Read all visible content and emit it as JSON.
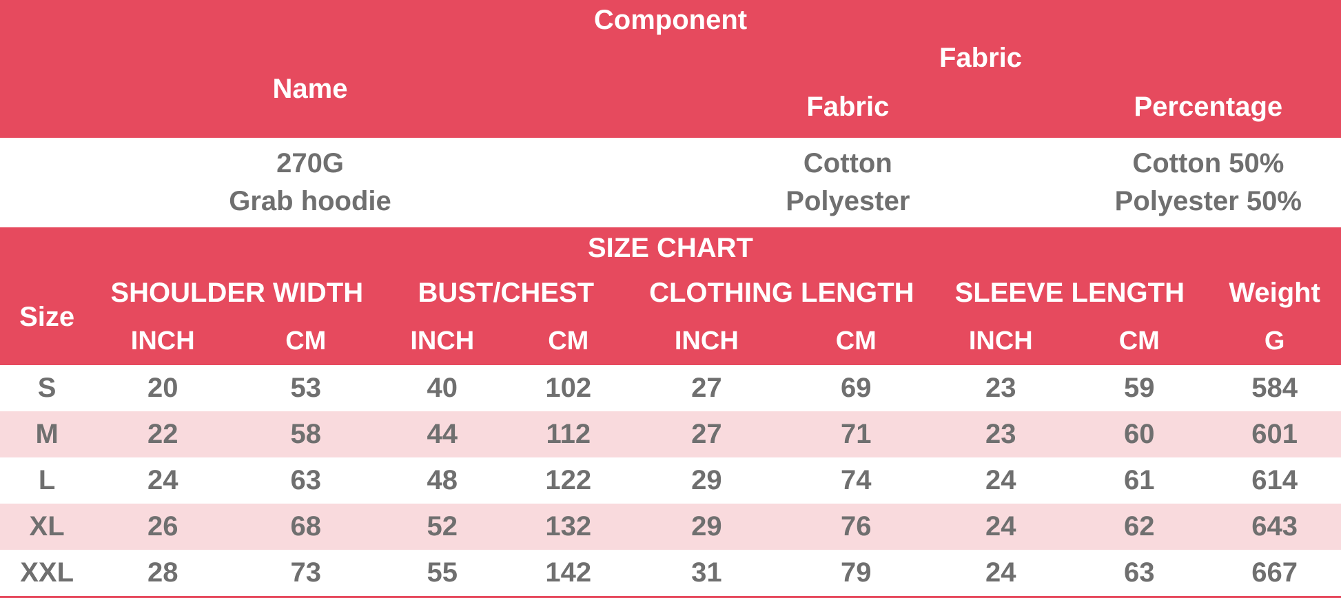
{
  "colors": {
    "header_bg": "#E64A5E",
    "stripe_bg": "#F9DADD",
    "header_text": "#FFFFFF",
    "value_text": "#6F6F6F"
  },
  "component_table": {
    "title": "Component",
    "name_header": "Name",
    "fabric_group_header": "Fabric",
    "fabric_header": "Fabric",
    "percentage_header": "Percentage",
    "name_lines": [
      "270G",
      "Grab hoodie"
    ],
    "fabric_lines": [
      "Cotton",
      "Polyester"
    ],
    "percentage_lines": [
      "Cotton 50%",
      "Polyester 50%"
    ]
  },
  "size_chart": {
    "title": "SIZE CHART",
    "size_header": "Size",
    "groups": [
      {
        "label": "SHOULDER WIDTH",
        "sub": [
          "INCH",
          "CM"
        ]
      },
      {
        "label": "BUST/CHEST",
        "sub": [
          "INCH",
          "CM"
        ]
      },
      {
        "label": "CLOTHING LENGTH",
        "sub": [
          "INCH",
          "CM"
        ]
      },
      {
        "label": "SLEEVE LENGTH",
        "sub": [
          "INCH",
          "CM"
        ]
      },
      {
        "label": "Weight",
        "sub": [
          "G"
        ]
      }
    ],
    "rows": [
      {
        "size": "S",
        "values": [
          20,
          53,
          40,
          102,
          27,
          69,
          23,
          59,
          584
        ]
      },
      {
        "size": "M",
        "values": [
          22,
          58,
          44,
          112,
          27,
          71,
          23,
          60,
          601
        ]
      },
      {
        "size": "L",
        "values": [
          24,
          63,
          48,
          122,
          29,
          74,
          24,
          61,
          614
        ]
      },
      {
        "size": "XL",
        "values": [
          26,
          68,
          52,
          132,
          29,
          76,
          24,
          62,
          643
        ]
      },
      {
        "size": "XXL",
        "values": [
          28,
          73,
          55,
          142,
          31,
          79,
          24,
          63,
          667
        ]
      }
    ]
  },
  "chart_data": [
    {
      "type": "table",
      "title": "Component",
      "columns": [
        "Name",
        "Fabric",
        "Fabric Percentage"
      ],
      "rows": [
        [
          "270G Grab hoodie",
          "Cotton Polyester",
          "Cotton 50% Polyester 50%"
        ]
      ]
    },
    {
      "type": "table",
      "title": "SIZE CHART",
      "columns": [
        "Size",
        "SHOULDER WIDTH INCH",
        "SHOULDER WIDTH CM",
        "BUST/CHEST INCH",
        "BUST/CHEST CM",
        "CLOTHING LENGTH INCH",
        "CLOTHING LENGTH CM",
        "SLEEVE LENGTH INCH",
        "SLEEVE LENGTH CM",
        "Weight G"
      ],
      "rows": [
        [
          "S",
          20,
          53,
          40,
          102,
          27,
          69,
          23,
          59,
          584
        ],
        [
          "M",
          22,
          58,
          44,
          112,
          27,
          71,
          23,
          60,
          601
        ],
        [
          "L",
          24,
          63,
          48,
          122,
          29,
          74,
          24,
          61,
          614
        ],
        [
          "XL",
          26,
          68,
          52,
          132,
          29,
          76,
          24,
          62,
          643
        ],
        [
          "XXL",
          28,
          73,
          55,
          142,
          31,
          79,
          24,
          63,
          667
        ]
      ]
    }
  ]
}
